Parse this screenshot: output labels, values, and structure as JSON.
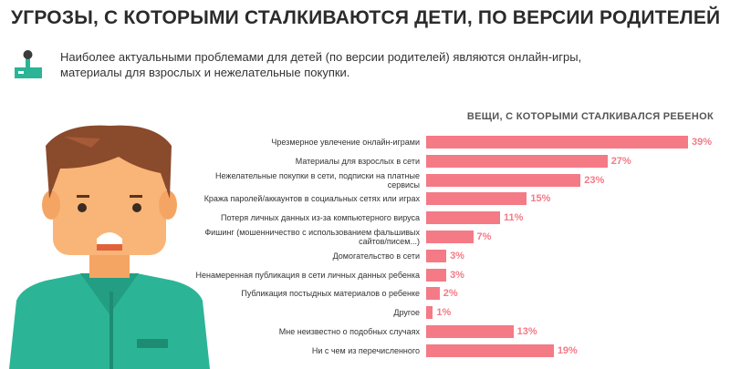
{
  "chart_data": {
    "type": "bar",
    "title": "УГРОЗЫ, С КОТОРЫМИ СТАЛКИВАЮТСЯ ДЕТИ, ПО ВЕРСИИ РОДИТЕЛЕЙ",
    "subtitle": "Наиболее актуальными проблемами для детей (по версии родителей) являются онлайн-игры, материалы для взрослых и нежелательные покупки.",
    "chart_title": "ВЕЩИ, С КОТОРЫМИ СТАЛКИВАЛСЯ РЕБЕНОК",
    "categories": [
      "Чрезмерное увлечение онлайн-играми",
      "Материалы для взрослых в сети",
      "Нежелательные покупки в сети, подписки на платные сервисы",
      "Кража паролей/аккаунтов в социальных сетях или играх",
      "Потеря личных данных из-за компьютерного вируса",
      "Фишинг (мошенничество с использованием фальшивых сайтов/писем...)",
      "Домогательство в сети",
      "Ненамеренная публикация в сети личных данных ребенка",
      "Публикация постыдных материалов о ребенке",
      "Другое",
      "Мне неизвестно о подобных случаях",
      "Ни с чем из перечисленного"
    ],
    "values": [
      39,
      27,
      23,
      15,
      11,
      7,
      3,
      3,
      2,
      1,
      13,
      19
    ],
    "value_labels": [
      "39%",
      "27%",
      "23%",
      "15%",
      "11%",
      "7%",
      "3%",
      "3%",
      "2%",
      "1%",
      "13%",
      "19%"
    ],
    "color": "#f47a86"
  }
}
